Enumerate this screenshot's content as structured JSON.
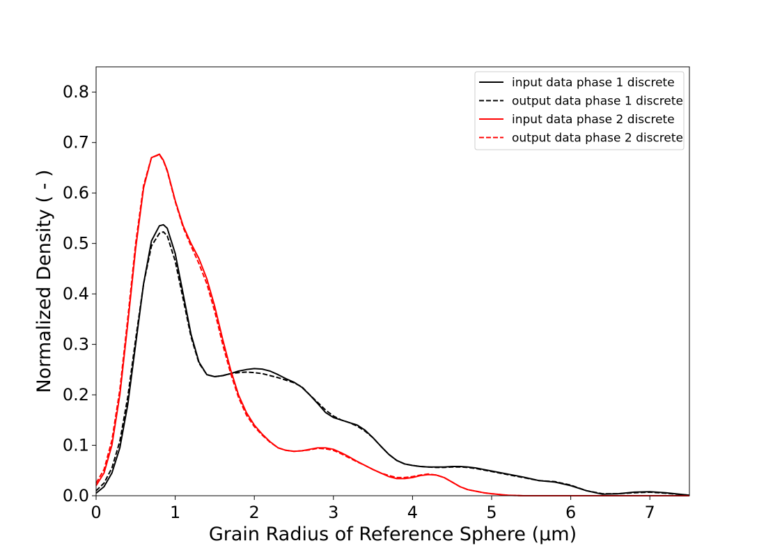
{
  "chart_data": {
    "type": "line",
    "title": "",
    "xlabel": "Grain Radius of Reference Sphere (µm)",
    "ylabel": "Normalized Density ( - )",
    "xlim": [
      0,
      7.5
    ],
    "ylim": [
      0,
      0.85
    ],
    "xticks": [
      0,
      1,
      2,
      3,
      4,
      5,
      6,
      7
    ],
    "yticks": [
      0.0,
      0.1,
      0.2,
      0.3,
      0.4,
      0.5,
      0.6,
      0.7,
      0.8
    ],
    "xtick_labels": [
      "0",
      "1",
      "2",
      "3",
      "4",
      "5",
      "6",
      "7"
    ],
    "ytick_labels": [
      "0.0",
      "0.1",
      "0.2",
      "0.3",
      "0.4",
      "0.5",
      "0.6",
      "0.7",
      "0.8"
    ],
    "grid": false,
    "legend_position": "top-right",
    "x": [
      0,
      0.1,
      0.2,
      0.3,
      0.4,
      0.5,
      0.6,
      0.7,
      0.8,
      0.85,
      0.9,
      1.0,
      1.1,
      1.2,
      1.3,
      1.4,
      1.5,
      1.6,
      1.7,
      1.8,
      1.9,
      2.0,
      2.1,
      2.2,
      2.3,
      2.4,
      2.5,
      2.6,
      2.7,
      2.8,
      2.9,
      3.0,
      3.1,
      3.2,
      3.3,
      3.4,
      3.5,
      3.6,
      3.7,
      3.8,
      3.9,
      4.0,
      4.1,
      4.2,
      4.3,
      4.4,
      4.5,
      4.6,
      4.7,
      4.8,
      4.9,
      5.0,
      5.2,
      5.4,
      5.6,
      5.8,
      6.0,
      6.2,
      6.4,
      6.6,
      6.8,
      7.0,
      7.2,
      7.5
    ],
    "series": [
      {
        "name": "input data phase 1 discrete",
        "color": "#000000",
        "dash": "solid",
        "values": [
          0.005,
          0.018,
          0.045,
          0.095,
          0.18,
          0.3,
          0.42,
          0.505,
          0.535,
          0.537,
          0.53,
          0.48,
          0.4,
          0.32,
          0.265,
          0.24,
          0.236,
          0.238,
          0.242,
          0.247,
          0.25,
          0.252,
          0.251,
          0.247,
          0.24,
          0.232,
          0.225,
          0.215,
          0.2,
          0.183,
          0.165,
          0.155,
          0.15,
          0.145,
          0.14,
          0.13,
          0.115,
          0.098,
          0.082,
          0.07,
          0.063,
          0.06,
          0.058,
          0.057,
          0.057,
          0.057,
          0.058,
          0.058,
          0.057,
          0.055,
          0.052,
          0.049,
          0.043,
          0.037,
          0.03,
          0.027,
          0.02,
          0.01,
          0.003,
          0.004,
          0.007,
          0.008,
          0.006,
          0.001
        ]
      },
      {
        "name": "output data phase 1 discrete",
        "color": "#000000",
        "dash": "dashed",
        "values": [
          0.01,
          0.025,
          0.055,
          0.108,
          0.195,
          0.31,
          0.42,
          0.495,
          0.52,
          0.523,
          0.515,
          0.465,
          0.39,
          0.315,
          0.263,
          0.24,
          0.236,
          0.238,
          0.242,
          0.244,
          0.245,
          0.244,
          0.242,
          0.238,
          0.234,
          0.229,
          0.224,
          0.216,
          0.2,
          0.185,
          0.17,
          0.158,
          0.15,
          0.145,
          0.138,
          0.128,
          0.115,
          0.098,
          0.082,
          0.07,
          0.063,
          0.06,
          0.058,
          0.057,
          0.056,
          0.056,
          0.057,
          0.057,
          0.056,
          0.054,
          0.051,
          0.048,
          0.042,
          0.036,
          0.03,
          0.028,
          0.021,
          0.01,
          0.004,
          0.004,
          0.006,
          0.007,
          0.005,
          0.001
        ]
      },
      {
        "name": "input data phase 2 discrete",
        "color": "#ff0000",
        "dash": "solid",
        "values": [
          0.02,
          0.045,
          0.1,
          0.2,
          0.34,
          0.49,
          0.61,
          0.67,
          0.677,
          0.665,
          0.645,
          0.585,
          0.535,
          0.5,
          0.47,
          0.43,
          0.375,
          0.31,
          0.25,
          0.2,
          0.165,
          0.14,
          0.122,
          0.107,
          0.095,
          0.09,
          0.088,
          0.089,
          0.092,
          0.095,
          0.095,
          0.092,
          0.085,
          0.077,
          0.068,
          0.06,
          0.052,
          0.045,
          0.038,
          0.034,
          0.034,
          0.036,
          0.04,
          0.042,
          0.041,
          0.036,
          0.027,
          0.018,
          0.012,
          0.009,
          0.006,
          0.004,
          0.001,
          0.0,
          0.0,
          0.0,
          0.0,
          0.0,
          0.0,
          0.0,
          0.0,
          0.0,
          0.0,
          0.0
        ]
      },
      {
        "name": "output data phase 2 discrete",
        "color": "#ff0000",
        "dash": "dashed",
        "values": [
          0.025,
          0.052,
          0.11,
          0.21,
          0.35,
          0.5,
          0.615,
          0.67,
          0.676,
          0.664,
          0.643,
          0.583,
          0.532,
          0.495,
          0.46,
          0.42,
          0.365,
          0.3,
          0.243,
          0.195,
          0.16,
          0.137,
          0.12,
          0.106,
          0.095,
          0.09,
          0.088,
          0.089,
          0.091,
          0.094,
          0.093,
          0.09,
          0.083,
          0.075,
          0.067,
          0.06,
          0.052,
          0.045,
          0.04,
          0.036,
          0.036,
          0.038,
          0.041,
          0.043,
          0.041,
          0.036,
          0.027,
          0.018,
          0.012,
          0.009,
          0.006,
          0.004,
          0.001,
          0.0,
          0.0,
          0.0,
          0.0,
          0.0,
          0.0,
          0.0,
          0.0,
          0.0,
          0.0,
          0.0
        ]
      }
    ]
  }
}
